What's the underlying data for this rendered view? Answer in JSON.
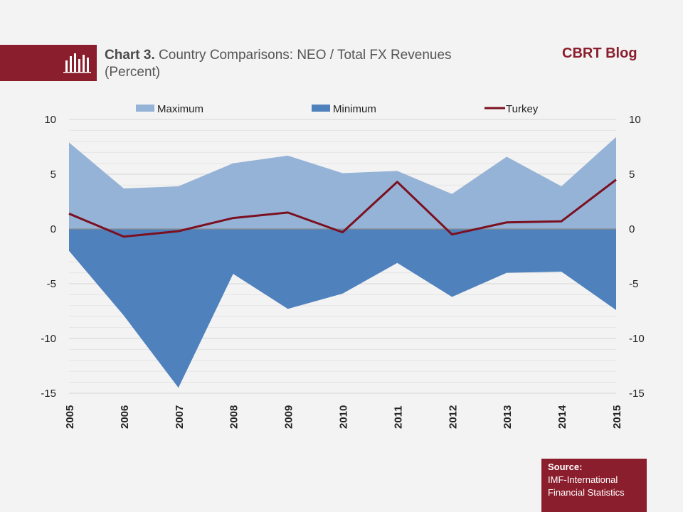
{
  "header": {
    "title_bold": "Chart 3.",
    "title_rest": "Country Comparisons:  NEO / Total FX Revenues (Percent)",
    "brand": "CBRT Blog",
    "icon": "bar-chart-icon"
  },
  "source": {
    "label": "Source:",
    "text": "IMF-International Financial Statistics"
  },
  "colors": {
    "accent": "#8b1e2d",
    "maximum": "#95b3d7",
    "minimum": "#4f81bd",
    "turkey": "#7b1020"
  },
  "chart_data": {
    "type": "area",
    "title": "Country Comparisons:  NEO / Total FX Revenues (Percent)",
    "x": [
      "2005",
      "2006",
      "2007",
      "2008",
      "2009",
      "2010",
      "2011",
      "2012",
      "2013",
      "2014",
      "2015"
    ],
    "series": [
      {
        "name": "Maximum",
        "type": "area",
        "values": [
          7.9,
          3.7,
          3.9,
          6.0,
          6.7,
          5.1,
          5.3,
          3.2,
          6.6,
          3.9,
          8.4
        ]
      },
      {
        "name": "Minimum",
        "type": "area",
        "values": [
          -2.0,
          -7.9,
          -14.5,
          -4.1,
          -7.3,
          -5.9,
          -3.1,
          -6.2,
          -4.0,
          -3.9,
          -7.4
        ]
      },
      {
        "name": "Turkey",
        "type": "line",
        "values": [
          1.4,
          -0.7,
          -0.2,
          1.0,
          1.5,
          -0.3,
          4.3,
          -0.5,
          0.6,
          0.7,
          4.5
        ]
      }
    ],
    "ylim": [
      -15,
      10
    ],
    "yticks": [
      10,
      5,
      0,
      -5,
      -10,
      -15
    ],
    "ytick_labels": [
      "10",
      "5",
      "0",
      "-5",
      "-10",
      "-15"
    ],
    "y_axis": "left and right",
    "gridlines": true,
    "legend": "top"
  }
}
